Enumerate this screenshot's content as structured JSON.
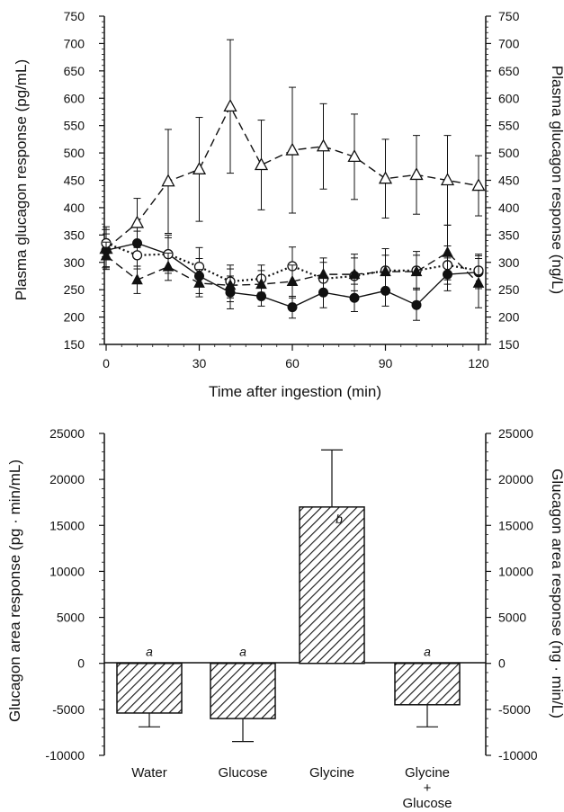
{
  "chart_data": [
    {
      "type": "line",
      "title": "",
      "xlabel": "Time after ingestion (min)",
      "ylabel": "Plasma glucagon response (pg/mL)",
      "ylabel_right": "Plasma glucagon response (ng/L)",
      "xlim": [
        0,
        120
      ],
      "ylim": [
        150,
        750
      ],
      "x_ticks": [
        0,
        30,
        60,
        90,
        120
      ],
      "y_ticks": [
        150,
        200,
        250,
        300,
        350,
        400,
        450,
        500,
        550,
        600,
        650,
        700,
        750
      ],
      "y_ticks_right": [
        150,
        200,
        250,
        300,
        350,
        400,
        450,
        500,
        550,
        600,
        650,
        700,
        750
      ],
      "grid": false,
      "series": [
        {
          "marker": "open-triangle",
          "line": "dashed",
          "x": [
            0,
            10,
            20,
            30,
            40,
            50,
            60,
            70,
            80,
            90,
            100,
            110,
            120
          ],
          "values": [
            325,
            372,
            448,
            470,
            585,
            478,
            505,
            512,
            493,
            453,
            460,
            450,
            440
          ],
          "err": [
            35,
            45,
            95,
            95,
            122,
            82,
            115,
            78,
            78,
            72,
            72,
            82,
            55
          ]
        },
        {
          "marker": "filled-circle",
          "line": "solid",
          "x": [
            0,
            10,
            20,
            30,
            40,
            50,
            60,
            70,
            80,
            90,
            100,
            110,
            120
          ],
          "values": [
            322,
            335,
            315,
            275,
            245,
            238,
            218,
            245,
            235,
            248,
            222,
            278,
            282
          ],
          "err": [
            30,
            22,
            30,
            32,
            30,
            18,
            20,
            28,
            25,
            28,
            28,
            30,
            30
          ]
        },
        {
          "marker": "open-circle",
          "line": "dotted",
          "x": [
            0,
            10,
            20,
            30,
            40,
            50,
            60,
            70,
            80,
            90,
            100,
            110,
            120
          ],
          "values": [
            335,
            313,
            315,
            292,
            265,
            270,
            293,
            270,
            275,
            285,
            285,
            295,
            285
          ],
          "err": [
            30,
            25,
            35,
            35,
            30,
            25,
            35,
            30,
            40,
            40,
            35,
            35,
            30
          ]
        },
        {
          "marker": "filled-triangle",
          "line": "dashed",
          "x": [
            0,
            10,
            20,
            30,
            40,
            50,
            60,
            70,
            80,
            90,
            100,
            110,
            120
          ],
          "values": [
            312,
            268,
            292,
            262,
            258,
            260,
            265,
            278,
            278,
            283,
            283,
            318,
            262
          ],
          "err": [
            25,
            25,
            25,
            25,
            30,
            25,
            30,
            30,
            30,
            30,
            30,
            50,
            45
          ]
        }
      ]
    },
    {
      "type": "bar",
      "title": "",
      "xlabel": "",
      "ylabel": "Glucagon area response (pg · min/mL)",
      "ylabel_right": "Glucagon area response (ng · min/L)",
      "ylim": [
        -10000,
        25000
      ],
      "y_ticks": [
        -10000,
        -5000,
        0,
        5000,
        10000,
        15000,
        20000,
        25000
      ],
      "y_ticks_right": [
        -10000,
        -5000,
        0,
        5000,
        10000,
        15000,
        20000,
        25000
      ],
      "categories": [
        [
          "Water"
        ],
        [
          "Glucose"
        ],
        [
          "Glycine"
        ],
        [
          "Glycine",
          "+",
          "Glucose"
        ]
      ],
      "values": [
        -5400,
        -6000,
        17000,
        -4500
      ],
      "err": [
        1500,
        2500,
        6200,
        2400
      ],
      "significance": [
        "a",
        "a",
        "b",
        "a"
      ],
      "fill": "diagonal-hatch"
    }
  ]
}
